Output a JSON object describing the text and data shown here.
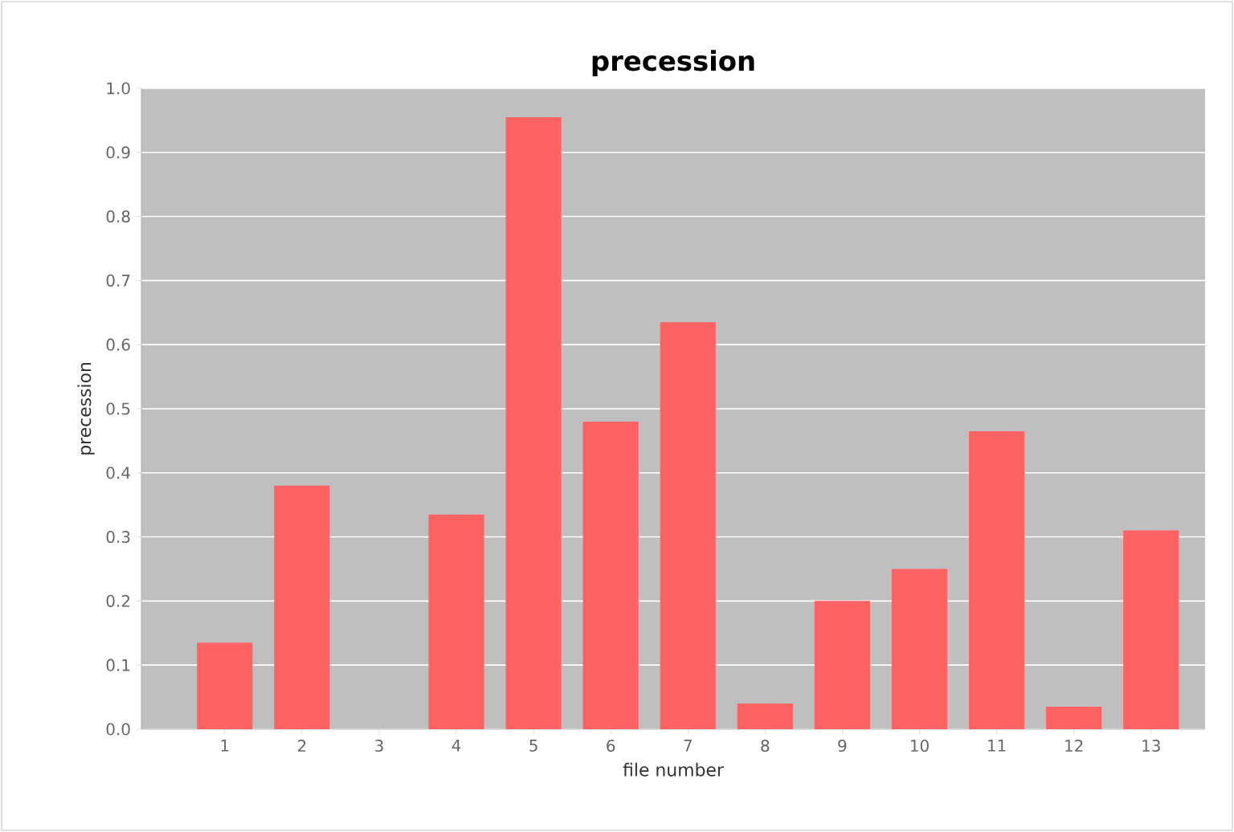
{
  "chart_data": {
    "type": "bar",
    "title": "precession",
    "xlabel": "file number",
    "ylabel": "precession",
    "categories": [
      "1",
      "2",
      "3",
      "4",
      "5",
      "6",
      "7",
      "8",
      "9",
      "10",
      "11",
      "12",
      "13"
    ],
    "values": [
      0.135,
      0.38,
      0,
      0.335,
      0.955,
      0.48,
      0.635,
      0.04,
      0.2,
      0.25,
      0.465,
      0.035,
      0.31
    ],
    "color": "#ff6262",
    "ylim": [
      0,
      1
    ],
    "yticks": [
      {
        "value": 0,
        "label": "0.0"
      },
      0.1,
      0.2,
      0.3,
      0.4,
      0.5,
      0.6,
      0.7,
      0.8,
      0.9,
      {
        "value": 1,
        "label": "1.0"
      }
    ],
    "grid": "y"
  }
}
